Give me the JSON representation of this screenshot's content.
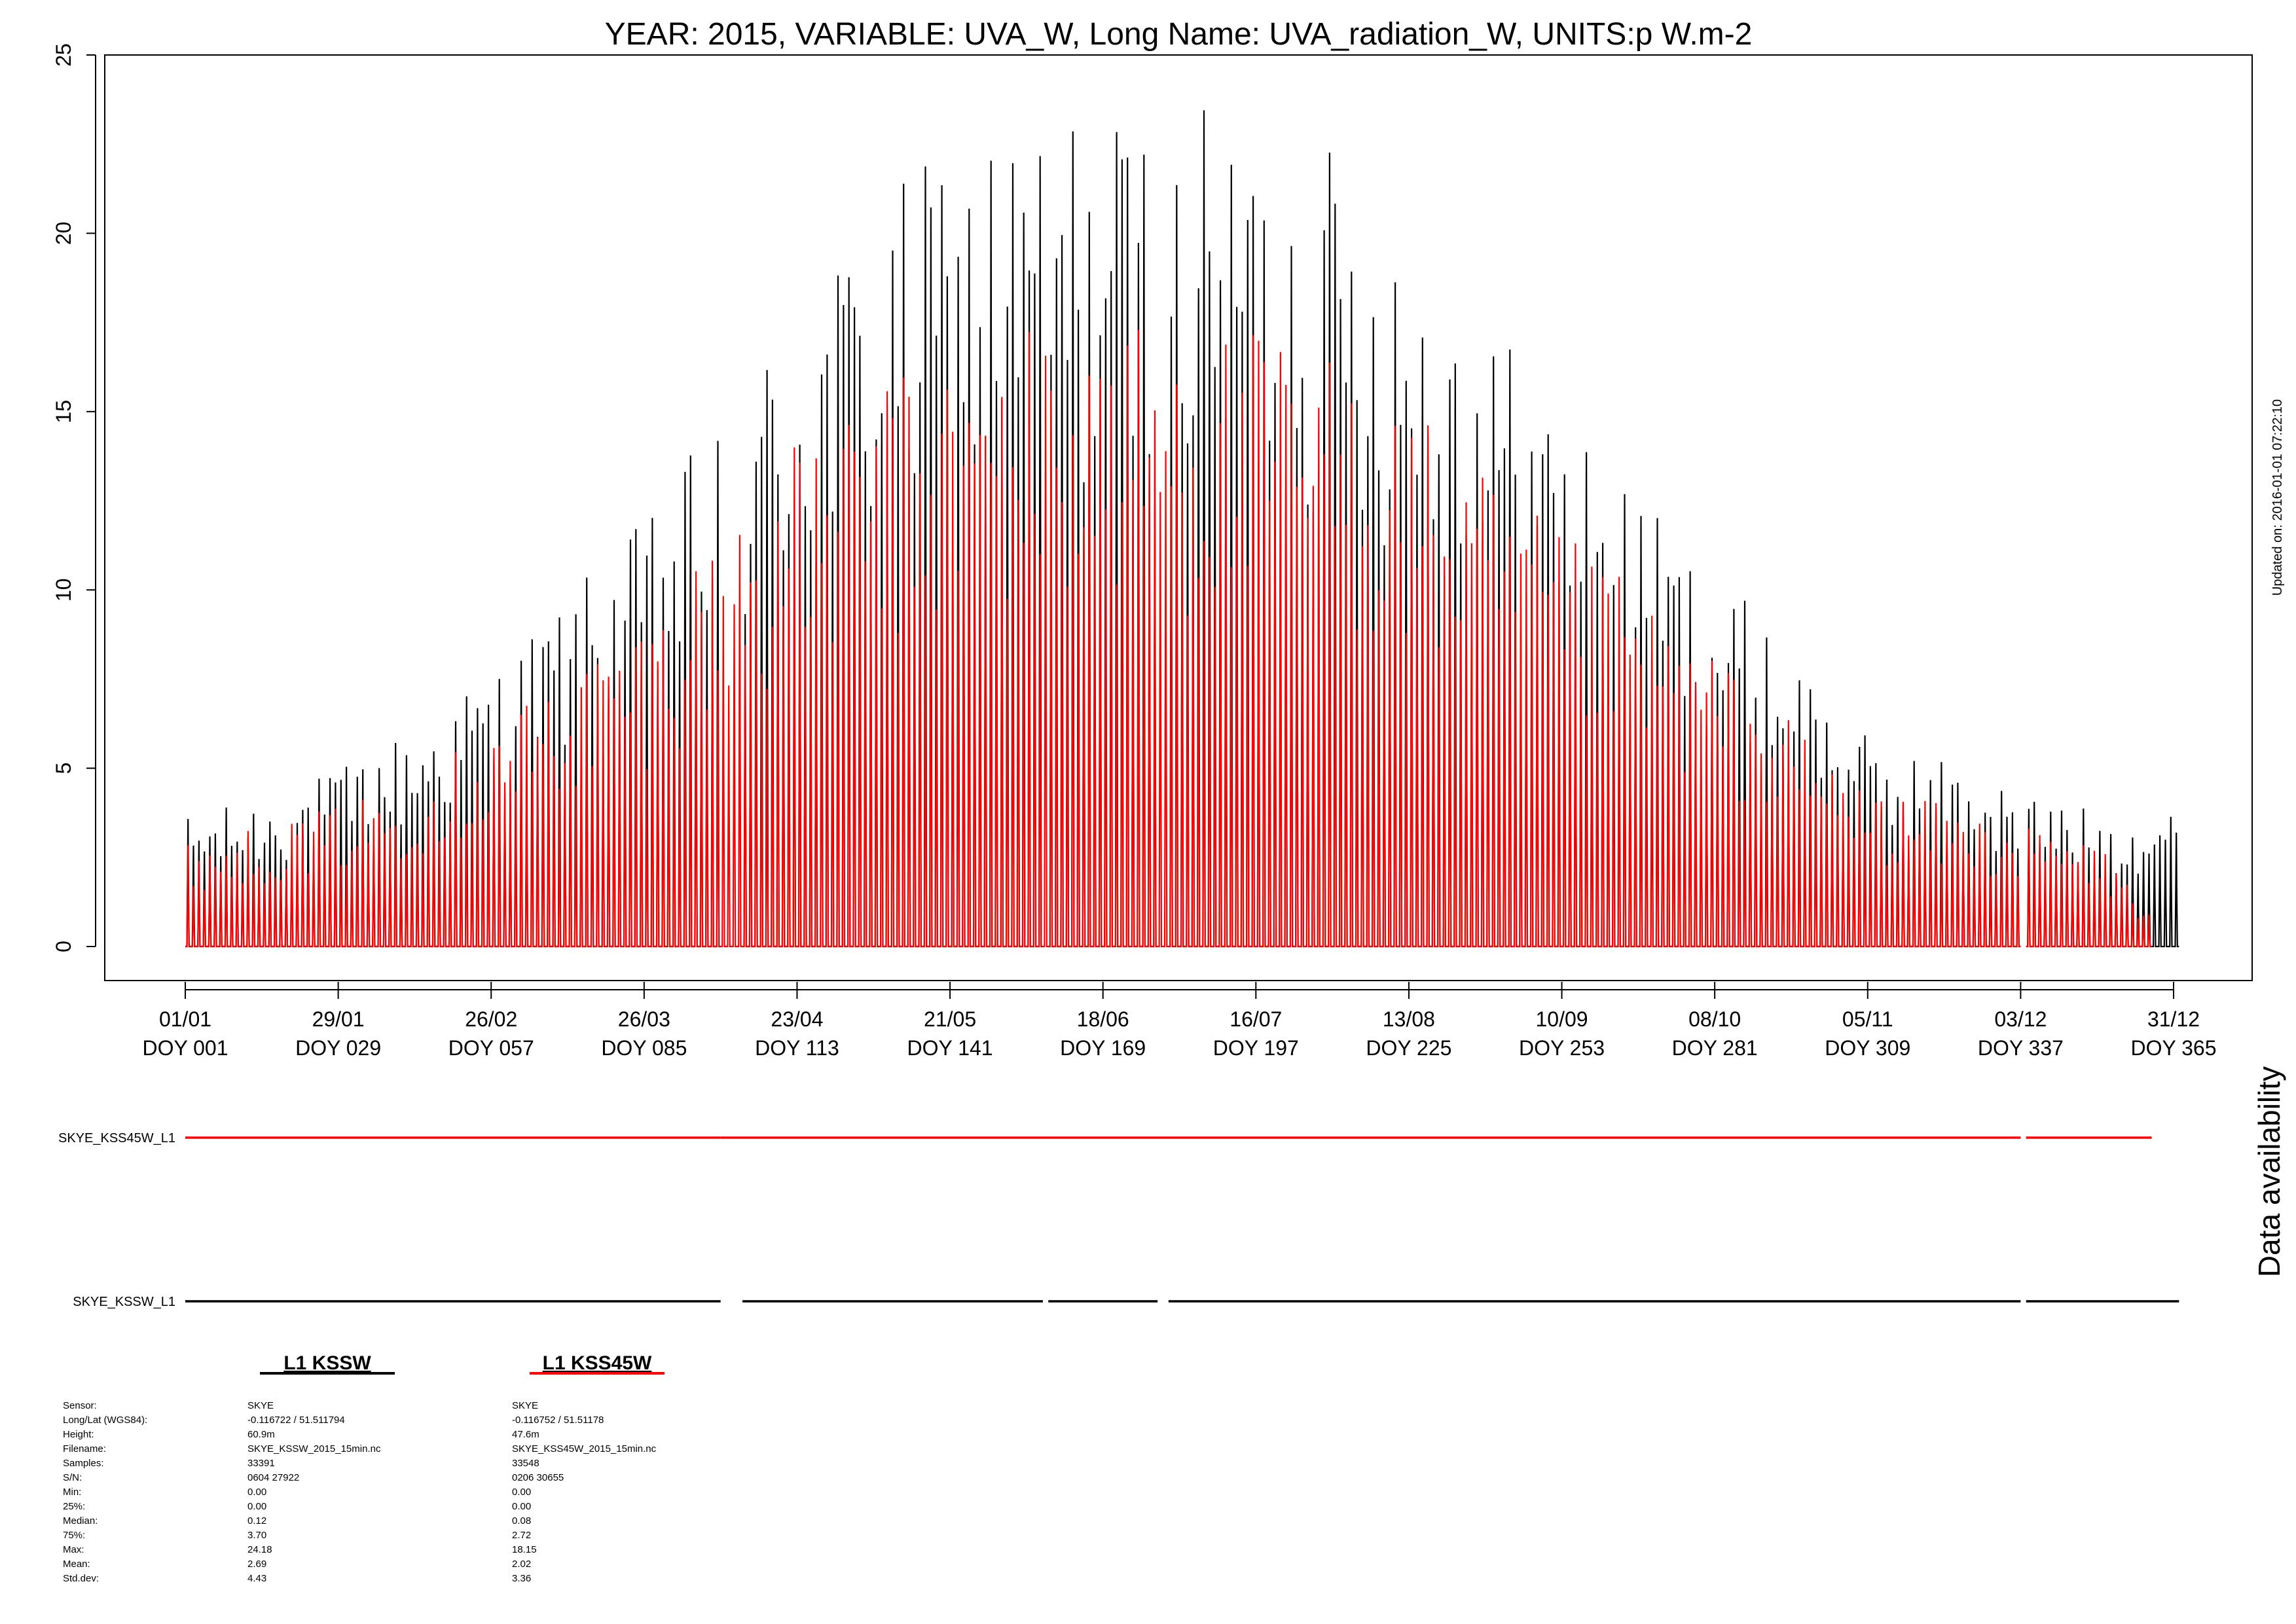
{
  "chart_data": {
    "type": "line",
    "title": "YEAR: 2015, VARIABLE: UVA_W, Long Name: UVA_radiation_W, UNITS:p W.m-2",
    "ylim": [
      0,
      25
    ],
    "xlim": [
      1,
      365
    ],
    "y_ticks": [
      0,
      5,
      10,
      15,
      20,
      25
    ],
    "x_ticks": [
      {
        "doy": 1,
        "date": "01/01",
        "label": "DOY 001"
      },
      {
        "doy": 29,
        "date": "29/01",
        "label": "DOY 029"
      },
      {
        "doy": 57,
        "date": "26/02",
        "label": "DOY 057"
      },
      {
        "doy": 85,
        "date": "26/03",
        "label": "DOY 085"
      },
      {
        "doy": 113,
        "date": "23/04",
        "label": "DOY 113"
      },
      {
        "doy": 141,
        "date": "21/05",
        "label": "DOY 141"
      },
      {
        "doy": 169,
        "date": "18/06",
        "label": "DOY 169"
      },
      {
        "doy": 197,
        "date": "16/07",
        "label": "DOY 197"
      },
      {
        "doy": 225,
        "date": "13/08",
        "label": "DOY 225"
      },
      {
        "doy": 253,
        "date": "10/09",
        "label": "DOY 253"
      },
      {
        "doy": 281,
        "date": "08/10",
        "label": "DOY 281"
      },
      {
        "doy": 309,
        "date": "05/11",
        "label": "DOY 309"
      },
      {
        "doy": 337,
        "date": "03/12",
        "label": "DOY 337"
      },
      {
        "doy": 365,
        "date": "31/12",
        "label": "DOY 365"
      }
    ],
    "series": [
      {
        "name": "L1 KSSW",
        "color": "#000000",
        "peak_envelope_doy": [
          1,
          15,
          29,
          43,
          57,
          71,
          85,
          99,
          113,
          127,
          141,
          155,
          169,
          183,
          197,
          211,
          225,
          239,
          253,
          267,
          281,
          295,
          309,
          323,
          337,
          351,
          365
        ],
        "peak_envelope_value": [
          3.5,
          4.0,
          4.8,
          6.0,
          7.5,
          9.5,
          11.5,
          14.5,
          17.5,
          20.0,
          21.5,
          22.5,
          22.5,
          22.5,
          22.0,
          21.5,
          19.5,
          17.0,
          14.5,
          12.0,
          10.0,
          8.0,
          5.5,
          5.0,
          4.2,
          3.6,
          3.8
        ]
      },
      {
        "name": "L1 KSS45W",
        "color": "#ff0000",
        "peak_envelope_doy": [
          1,
          15,
          29,
          43,
          57,
          71,
          85,
          99,
          113,
          127,
          141,
          155,
          169,
          183,
          197,
          211,
          225,
          239,
          253,
          267,
          281,
          295,
          309,
          323,
          337,
          351,
          365
        ],
        "peak_envelope_value": [
          2.8,
          3.2,
          3.8,
          4.6,
          6.0,
          7.6,
          9.0,
          11.5,
          13.5,
          15.0,
          16.0,
          16.8,
          17.0,
          16.8,
          16.5,
          16.0,
          14.5,
          12.5,
          11.0,
          9.5,
          7.8,
          6.0,
          4.2,
          3.8,
          3.2,
          2.8,
          0
        ]
      }
    ],
    "availability": {
      "title": "Data availability",
      "rows": [
        {
          "label": "SKYE_KSS45W_L1",
          "color": "#ff0000",
          "segments": [
            [
              1,
              98
            ],
            [
              99,
              336
            ],
            [
              338,
              360
            ]
          ]
        },
        {
          "label": "SKYE_KSSW_L1",
          "color": "#000000",
          "segments": [
            [
              1,
              98
            ],
            [
              103,
              157
            ],
            [
              159,
              178
            ],
            [
              181,
              336
            ],
            [
              338,
              365
            ]
          ]
        }
      ]
    },
    "updated": "Updated on: 2016-01-01 07:22:10"
  },
  "legend": [
    {
      "label": "L1 KSSW",
      "color": "#000000"
    },
    {
      "label": "L1 KSS45W",
      "color": "#ff0000"
    }
  ],
  "info": {
    "fields": [
      "Sensor:",
      "Long/Lat (WGS84):",
      "Height:",
      "Filename:",
      "Samples:",
      "S/N:",
      "Min:",
      "25%:",
      "Median:",
      "75%:",
      "Max:",
      "Mean:",
      "Std.dev:"
    ],
    "kssw": [
      "SKYE",
      "-0.116722 / 51.511794",
      "60.9m",
      "SKYE_KSSW_2015_15min.nc",
      "33391",
      "0604 27922",
      "0.00",
      "0.00",
      "0.12",
      "3.70",
      "24.18",
      "2.69",
      "4.43"
    ],
    "kss45w": [
      "SKYE",
      "-0.116752 / 51.51178",
      "47.6m",
      "SKYE_KSS45W_2015_15min.nc",
      "33548",
      "0206 30655",
      "0.00",
      "0.00",
      "0.08",
      "2.72",
      "18.15",
      "2.02",
      "3.36"
    ]
  }
}
